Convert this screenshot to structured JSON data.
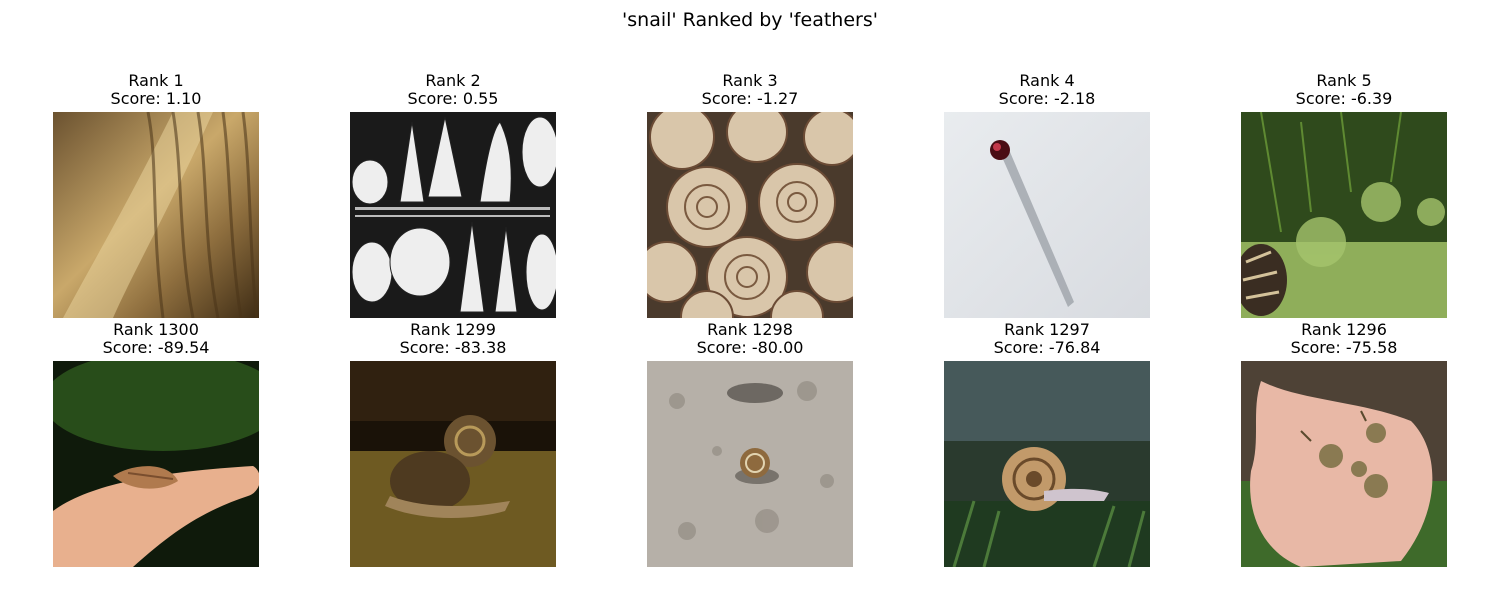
{
  "figure": {
    "title": "'snail' Ranked by 'feathers'"
  },
  "panels": [
    {
      "rank_label": "Rank 1",
      "score_label": "Score: 1.10",
      "image": "snail-skin-closeup-photo"
    },
    {
      "rank_label": "Rank 2",
      "score_label": "Score: 0.55",
      "image": "seashell-engraving-illustration-photo"
    },
    {
      "rank_label": "Rank 3",
      "score_label": "Score: -1.27",
      "image": "pile-of-snail-shells-photo"
    },
    {
      "rank_label": "Rank 4",
      "score_label": "Score: -2.18",
      "image": "small-shell-on-white-wall-photo"
    },
    {
      "rank_label": "Rank 5",
      "score_label": "Score: -6.39",
      "image": "snail-in-green-plants-photo"
    },
    {
      "rank_label": "Rank 1300",
      "score_label": "Score: -89.54",
      "image": "snail-on-palm-photo"
    },
    {
      "rank_label": "Rank 1299",
      "score_label": "Score: -83.38",
      "image": "two-snails-at-night-photo"
    },
    {
      "rank_label": "Rank 1298",
      "score_label": "Score: -80.00",
      "image": "snail-on-concrete-photo"
    },
    {
      "rank_label": "Rank 1297",
      "score_label": "Score: -76.84",
      "image": "snail-on-moss-photo"
    },
    {
      "rank_label": "Rank 1296",
      "score_label": "Score: -75.58",
      "image": "snails-in-hand-photo"
    }
  ]
}
